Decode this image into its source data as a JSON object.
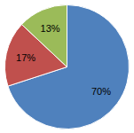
{
  "chart_data": {
    "type": "pie",
    "values": [
      70,
      17,
      13
    ],
    "value_labels": [
      "70%",
      "17%",
      "13%"
    ],
    "colors": [
      "#4f81bd",
      "#c0504d",
      "#9bbb59"
    ],
    "data_labels": true
  }
}
